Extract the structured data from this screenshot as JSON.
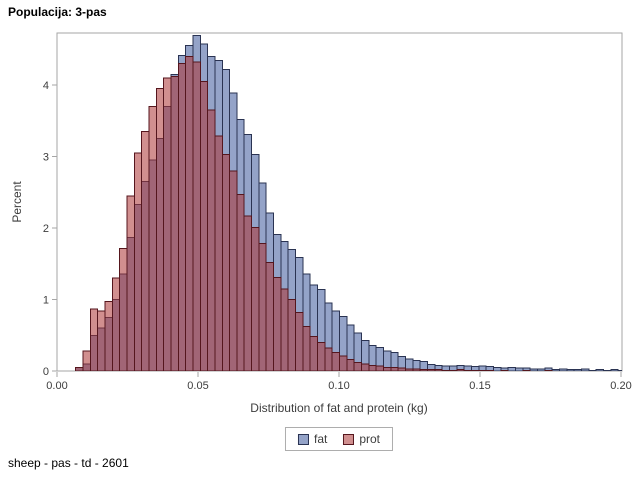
{
  "title": "Populacija: 3-pas",
  "footer": "sheep - pas - td - 2601",
  "y_axis": {
    "label": "Percent",
    "ticks": [
      0,
      1,
      2,
      3,
      4
    ]
  },
  "x_axis": {
    "label": "Distribution of fat and protein (kg)",
    "tick_labels": [
      "0.00",
      "0.05",
      "0.10",
      "0.15",
      "0.20"
    ],
    "tick_values": [
      0,
      0.05,
      0.1,
      0.15,
      0.2
    ]
  },
  "legend": {
    "position": "bottom-center",
    "items": [
      {
        "label": "fat",
        "color": "#94a3c8",
        "border": "#2a3352"
      },
      {
        "label": "prot",
        "color": "#d08f8f",
        "border": "#55161d"
      }
    ]
  },
  "colors": {
    "wall_border": "#a6a6a6",
    "tick": "#a6a6a6",
    "axis_text": "#3d3d3d",
    "fat_fill": "#94a3c8",
    "fat_stroke": "#2a3352",
    "prot_fill": "rgba(171,51,51,0.55)",
    "prot_stroke": "#55161d"
  },
  "chart_data": {
    "type": "bar",
    "subtype": "overlaid-histogram",
    "title": "Populacija: 3-pas",
    "xlabel": "Distribution of fat and protein (kg)",
    "ylabel": "Percent",
    "xlim": [
      0,
      0.2004
    ],
    "ylim": [
      0,
      4.73
    ],
    "grid": false,
    "legend_position": "bottom-center",
    "bin_start": 0.0066,
    "bin_width": 0.0026,
    "units": "percent",
    "series": [
      {
        "name": "fat",
        "values": [
          0.05,
          0.1,
          0.5,
          0.6,
          0.75,
          1.0,
          1.36,
          1.87,
          2.33,
          2.65,
          2.95,
          3.25,
          3.7,
          4.15,
          4.41,
          4.55,
          4.69,
          4.57,
          4.4,
          4.34,
          4.22,
          3.89,
          3.52,
          3.31,
          3.03,
          2.63,
          2.21,
          1.91,
          1.81,
          1.7,
          1.59,
          1.36,
          1.2,
          1.14,
          0.95,
          0.84,
          0.76,
          0.64,
          0.53,
          0.43,
          0.36,
          0.33,
          0.28,
          0.26,
          0.2,
          0.17,
          0.15,
          0.13,
          0.09,
          0.08,
          0.07,
          0.07,
          0.08,
          0.07,
          0.06,
          0.07,
          0.06,
          0.05,
          0.04,
          0.05,
          0.04,
          0.04,
          0.03,
          0.03,
          0.04,
          0.02,
          0.03,
          0.02,
          0.02,
          0.03,
          0.01,
          0.02,
          0.01,
          0.02,
          0.01
        ]
      },
      {
        "name": "prot",
        "values": [
          0.05,
          0.28,
          0.87,
          0.84,
          0.97,
          1.3,
          1.71,
          2.45,
          3.05,
          3.35,
          3.7,
          3.95,
          4.1,
          4.12,
          4.3,
          4.4,
          4.32,
          4.05,
          3.65,
          3.29,
          3.03,
          2.8,
          2.47,
          2.17,
          2.01,
          1.78,
          1.52,
          1.31,
          1.15,
          1.0,
          0.82,
          0.62,
          0.48,
          0.4,
          0.32,
          0.26,
          0.21,
          0.16,
          0.12,
          0.1,
          0.08,
          0.07,
          0.05,
          0.05,
          0.04,
          0.03,
          0.03,
          0.02,
          0.02,
          0.02,
          0.01,
          0.01,
          0.02,
          0.01,
          0.01,
          0.01,
          0.01,
          0,
          0.01,
          0,
          0,
          0.01,
          0,
          0,
          0.01,
          0,
          0,
          0,
          0,
          0,
          0,
          0,
          0,
          0,
          0
        ]
      }
    ]
  }
}
